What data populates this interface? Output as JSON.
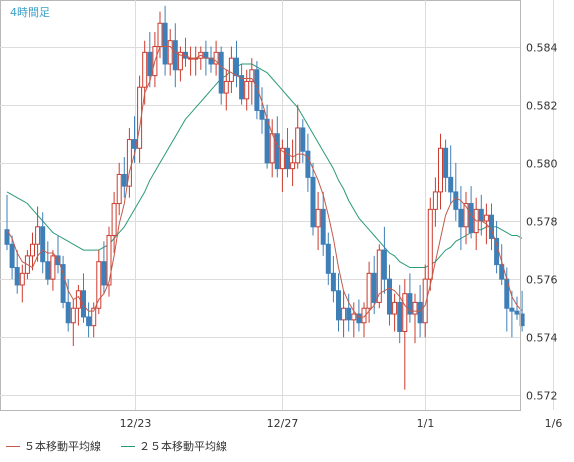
{
  "chart_data": {
    "type": "candlestick",
    "title": "4時間足",
    "y_ticks": [
      "0.584",
      "0.582",
      "0.580",
      "0.578",
      "0.576",
      "0.574",
      "0.572"
    ],
    "y_tick_values": [
      0.584,
      0.582,
      0.58,
      0.578,
      0.576,
      0.574,
      0.572
    ],
    "ylim": [
      0.5715,
      0.5856
    ],
    "x_ticks": [
      {
        "label": "12/23",
        "index": 25
      },
      {
        "label": "12/27",
        "index": 54
      },
      {
        "label": "1/1",
        "index": 82
      },
      {
        "label": "1/6",
        "index": 107
      }
    ],
    "candle_colors": {
      "up": "#cc3b2e",
      "down": "#3e7fb8"
    },
    "ohlc": [
      [
        0.5777,
        0.5789,
        0.577,
        0.5772
      ],
      [
        0.5772,
        0.5775,
        0.576,
        0.5764
      ],
      [
        0.5764,
        0.577,
        0.5755,
        0.5758
      ],
      [
        0.5758,
        0.5765,
        0.5752,
        0.5762
      ],
      [
        0.5762,
        0.577,
        0.576,
        0.5768
      ],
      [
        0.5768,
        0.5776,
        0.5763,
        0.5772
      ],
      [
        0.5772,
        0.5785,
        0.5766,
        0.5778
      ],
      [
        0.5778,
        0.5783,
        0.5762,
        0.5766
      ],
      [
        0.5766,
        0.5773,
        0.5758,
        0.576
      ],
      [
        0.576,
        0.577,
        0.5756,
        0.5768
      ],
      [
        0.5768,
        0.5775,
        0.5762,
        0.5765
      ],
      [
        0.5765,
        0.5768,
        0.575,
        0.5752
      ],
      [
        0.5752,
        0.576,
        0.5742,
        0.5745
      ],
      [
        0.5745,
        0.5753,
        0.5737,
        0.575
      ],
      [
        0.575,
        0.5758,
        0.5744,
        0.5756
      ],
      [
        0.5756,
        0.5762,
        0.5745,
        0.5747
      ],
      [
        0.5747,
        0.5752,
        0.574,
        0.5744
      ],
      [
        0.5744,
        0.5752,
        0.574,
        0.575
      ],
      [
        0.575,
        0.577,
        0.5748,
        0.5766
      ],
      [
        0.5766,
        0.5773,
        0.5755,
        0.5758
      ],
      [
        0.5758,
        0.5778,
        0.5754,
        0.5775
      ],
      [
        0.5775,
        0.579,
        0.5769,
        0.5786
      ],
      [
        0.5786,
        0.58,
        0.5782,
        0.5796
      ],
      [
        0.5796,
        0.5802,
        0.5788,
        0.5792
      ],
      [
        0.5792,
        0.5812,
        0.5788,
        0.5808
      ],
      [
        0.5808,
        0.5816,
        0.58,
        0.5805
      ],
      [
        0.5805,
        0.583,
        0.58,
        0.5826
      ],
      [
        0.5826,
        0.5842,
        0.582,
        0.5838
      ],
      [
        0.5838,
        0.5845,
        0.5826,
        0.583
      ],
      [
        0.583,
        0.5845,
        0.5826,
        0.584
      ],
      [
        0.584,
        0.5852,
        0.5836,
        0.5848
      ],
      [
        0.5848,
        0.5854,
        0.583,
        0.5834
      ],
      [
        0.5834,
        0.5846,
        0.583,
        0.5842
      ],
      [
        0.5842,
        0.5848,
        0.5826,
        0.5832
      ],
      [
        0.5832,
        0.584,
        0.5828,
        0.5838
      ],
      [
        0.5838,
        0.5843,
        0.5833,
        0.5836
      ],
      [
        0.5836,
        0.584,
        0.583,
        0.5836
      ],
      [
        0.5836,
        0.584,
        0.583,
        0.5836
      ],
      [
        0.5836,
        0.584,
        0.5832,
        0.5838
      ],
      [
        0.5838,
        0.5842,
        0.583,
        0.5836
      ],
      [
        0.5836,
        0.584,
        0.5831,
        0.5834
      ],
      [
        0.5834,
        0.5842,
        0.583,
        0.5838
      ],
      [
        0.5838,
        0.584,
        0.582,
        0.5824
      ],
      [
        0.5824,
        0.5832,
        0.5818,
        0.5828
      ],
      [
        0.5828,
        0.584,
        0.5824,
        0.5836
      ],
      [
        0.5836,
        0.5842,
        0.5826,
        0.583
      ],
      [
        0.583,
        0.5834,
        0.582,
        0.5822
      ],
      [
        0.5822,
        0.5832,
        0.5818,
        0.5828
      ],
      [
        0.5828,
        0.5836,
        0.582,
        0.5832
      ],
      [
        0.5832,
        0.5835,
        0.5815,
        0.5818
      ],
      [
        0.5818,
        0.5826,
        0.581,
        0.5815
      ],
      [
        0.5815,
        0.582,
        0.5798,
        0.58
      ],
      [
        0.58,
        0.5815,
        0.5795,
        0.581
      ],
      [
        0.581,
        0.5816,
        0.5795,
        0.5798
      ],
      [
        0.5798,
        0.5808,
        0.579,
        0.5805
      ],
      [
        0.5805,
        0.5812,
        0.5795,
        0.5798
      ],
      [
        0.5798,
        0.5808,
        0.5792,
        0.58
      ],
      [
        0.58,
        0.582,
        0.5798,
        0.5812
      ],
      [
        0.5812,
        0.5815,
        0.58,
        0.5804
      ],
      [
        0.5804,
        0.581,
        0.579,
        0.5795
      ],
      [
        0.5795,
        0.58,
        0.5775,
        0.5778
      ],
      [
        0.5778,
        0.579,
        0.577,
        0.5784
      ],
      [
        0.5784,
        0.579,
        0.5768,
        0.5772
      ],
      [
        0.5772,
        0.5776,
        0.5758,
        0.5762
      ],
      [
        0.5762,
        0.5768,
        0.5752,
        0.5756
      ],
      [
        0.5756,
        0.5762,
        0.5742,
        0.5746
      ],
      [
        0.5746,
        0.5756,
        0.574,
        0.575
      ],
      [
        0.575,
        0.5755,
        0.5742,
        0.5746
      ],
      [
        0.5746,
        0.5752,
        0.574,
        0.5748
      ],
      [
        0.5748,
        0.5753,
        0.5742,
        0.5745
      ],
      [
        0.5745,
        0.5752,
        0.574,
        0.575
      ],
      [
        0.575,
        0.5766,
        0.5745,
        0.5762
      ],
      [
        0.5762,
        0.5768,
        0.5748,
        0.5752
      ],
      [
        0.5752,
        0.5772,
        0.575,
        0.577
      ],
      [
        0.577,
        0.5778,
        0.5755,
        0.576
      ],
      [
        0.576,
        0.5765,
        0.5744,
        0.5748
      ],
      [
        0.5748,
        0.5755,
        0.5742,
        0.5752
      ],
      [
        0.5752,
        0.5758,
        0.5738,
        0.5742
      ],
      [
        0.5742,
        0.576,
        0.5722,
        0.5755
      ],
      [
        0.5755,
        0.5762,
        0.5745,
        0.5748
      ],
      [
        0.5748,
        0.5755,
        0.5738,
        0.5752
      ],
      [
        0.5752,
        0.5758,
        0.574,
        0.5745
      ],
      [
        0.5745,
        0.5765,
        0.574,
        0.576
      ],
      [
        0.576,
        0.5788,
        0.5756,
        0.5784
      ],
      [
        0.5784,
        0.5795,
        0.5778,
        0.579
      ],
      [
        0.579,
        0.581,
        0.5784,
        0.5805
      ],
      [
        0.5805,
        0.5808,
        0.579,
        0.5795
      ],
      [
        0.5795,
        0.5806,
        0.5786,
        0.579
      ],
      [
        0.579,
        0.58,
        0.578,
        0.5784
      ],
      [
        0.5784,
        0.5792,
        0.577,
        0.5778
      ],
      [
        0.5778,
        0.579,
        0.5772,
        0.5786
      ],
      [
        0.5786,
        0.5792,
        0.5774,
        0.5776
      ],
      [
        0.5776,
        0.5788,
        0.577,
        0.5784
      ],
      [
        0.5784,
        0.5789,
        0.5775,
        0.578
      ],
      [
        0.578,
        0.5786,
        0.5772,
        0.5782
      ],
      [
        0.5782,
        0.5786,
        0.577,
        0.5774
      ],
      [
        0.5774,
        0.578,
        0.5762,
        0.5765
      ],
      [
        0.5765,
        0.5772,
        0.5758,
        0.576
      ],
      [
        0.576,
        0.5764,
        0.5742,
        0.575
      ],
      [
        0.575,
        0.5756,
        0.574,
        0.5749
      ],
      [
        0.5749,
        0.5754,
        0.5746,
        0.5748
      ],
      [
        0.5748,
        0.5756,
        0.5742,
        0.5744
      ]
    ],
    "ma5": [
      0.5777,
      0.5774,
      0.5769,
      0.5766,
      0.5765,
      0.5764,
      0.5768,
      0.577,
      0.5769,
      0.5769,
      0.5767,
      0.5762,
      0.5756,
      0.5753,
      0.5754,
      0.5751,
      0.5749,
      0.5749,
      0.5753,
      0.5755,
      0.5759,
      0.5768,
      0.5779,
      0.5786,
      0.5797,
      0.5803,
      0.5812,
      0.5824,
      0.5828,
      0.5835,
      0.584,
      0.584,
      0.584,
      0.5838,
      0.5837,
      0.5837,
      0.5836,
      0.5836,
      0.5837,
      0.5836,
      0.5836,
      0.5835,
      0.5833,
      0.5832,
      0.5831,
      0.583,
      0.5829,
      0.5829,
      0.5829,
      0.5826,
      0.5821,
      0.5815,
      0.581,
      0.5806,
      0.5804,
      0.5803,
      0.5802,
      0.5803,
      0.5803,
      0.5802,
      0.5798,
      0.5794,
      0.5789,
      0.5782,
      0.5774,
      0.5764,
      0.5756,
      0.5752,
      0.5749,
      0.5747,
      0.5747,
      0.5749,
      0.5751,
      0.5755,
      0.5756,
      0.5757,
      0.5756,
      0.5754,
      0.5751,
      0.5749,
      0.5749,
      0.5749,
      0.5751,
      0.5758,
      0.5766,
      0.5774,
      0.5782,
      0.5786,
      0.5788,
      0.5787,
      0.5785,
      0.5782,
      0.578,
      0.578,
      0.5779,
      0.5777,
      0.5772,
      0.5766,
      0.576,
      0.5754,
      0.5751,
      0.5749
    ],
    "ma25": [
      0.579,
      0.5789,
      0.5788,
      0.5787,
      0.5786,
      0.5784,
      0.5782,
      0.578,
      0.5778,
      0.5776,
      0.5775,
      0.5774,
      0.5773,
      0.5772,
      0.5771,
      0.577,
      0.577,
      0.577,
      0.577,
      0.5771,
      0.5772,
      0.5774,
      0.5776,
      0.5778,
      0.5781,
      0.5784,
      0.5787,
      0.579,
      0.5794,
      0.5797,
      0.58,
      0.5803,
      0.5806,
      0.5809,
      0.5812,
      0.5815,
      0.5817,
      0.5819,
      0.5821,
      0.5823,
      0.5825,
      0.5827,
      0.5829,
      0.583,
      0.5832,
      0.5833,
      0.5834,
      0.5834,
      0.5834,
      0.5833,
      0.5832,
      0.5831,
      0.5829,
      0.5827,
      0.5825,
      0.5823,
      0.5821,
      0.5819,
      0.5816,
      0.5813,
      0.581,
      0.5807,
      0.5804,
      0.5801,
      0.5798,
      0.5794,
      0.5791,
      0.5787,
      0.5784,
      0.5781,
      0.5779,
      0.5777,
      0.5775,
      0.5773,
      0.5771,
      0.5769,
      0.5768,
      0.5766,
      0.5765,
      0.5764,
      0.5764,
      0.5764,
      0.5764,
      0.5765,
      0.5766,
      0.5768,
      0.577,
      0.5771,
      0.5773,
      0.5774,
      0.5775,
      0.5776,
      0.5777,
      0.5777,
      0.5778,
      0.5778,
      0.5778,
      0.5777,
      0.5776,
      0.5775,
      0.5775,
      0.5774
    ],
    "legend": [
      {
        "label": "５本移動平均線",
        "color": "#c45a4a"
      },
      {
        "label": "２５本移動平均線",
        "color": "#2a9a78"
      }
    ],
    "grid": true
  }
}
